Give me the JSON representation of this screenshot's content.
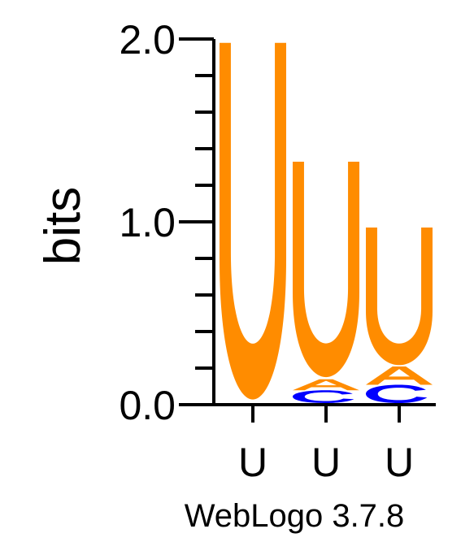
{
  "chart_data": {
    "type": "sequence-logo",
    "ylabel": "bits",
    "ylim": [
      0,
      2.0
    ],
    "yticks": [
      {
        "value": 0.0,
        "label": "0.0"
      },
      {
        "value": 1.0,
        "label": "1.0"
      },
      {
        "value": 2.0,
        "label": "2.0"
      }
    ],
    "yminor_step": 0.2,
    "xticks": [
      "U",
      "U",
      "U"
    ],
    "positions": [
      {
        "stack": [
          {
            "letter": "U",
            "bits": 1.97
          }
        ]
      },
      {
        "stack": [
          {
            "letter": "C",
            "bits": 0.07
          },
          {
            "letter": "A",
            "bits": 0.06
          },
          {
            "letter": "U",
            "bits": 1.19
          }
        ]
      },
      {
        "stack": [
          {
            "letter": "C",
            "bits": 0.1
          },
          {
            "letter": "A",
            "bits": 0.1
          },
          {
            "letter": "U",
            "bits": 0.76
          }
        ]
      }
    ],
    "colors": {
      "U": "#ff8c00",
      "A": "#ff8c00",
      "C": "#0000ff"
    }
  },
  "footer": "WebLogo 3.7.8"
}
